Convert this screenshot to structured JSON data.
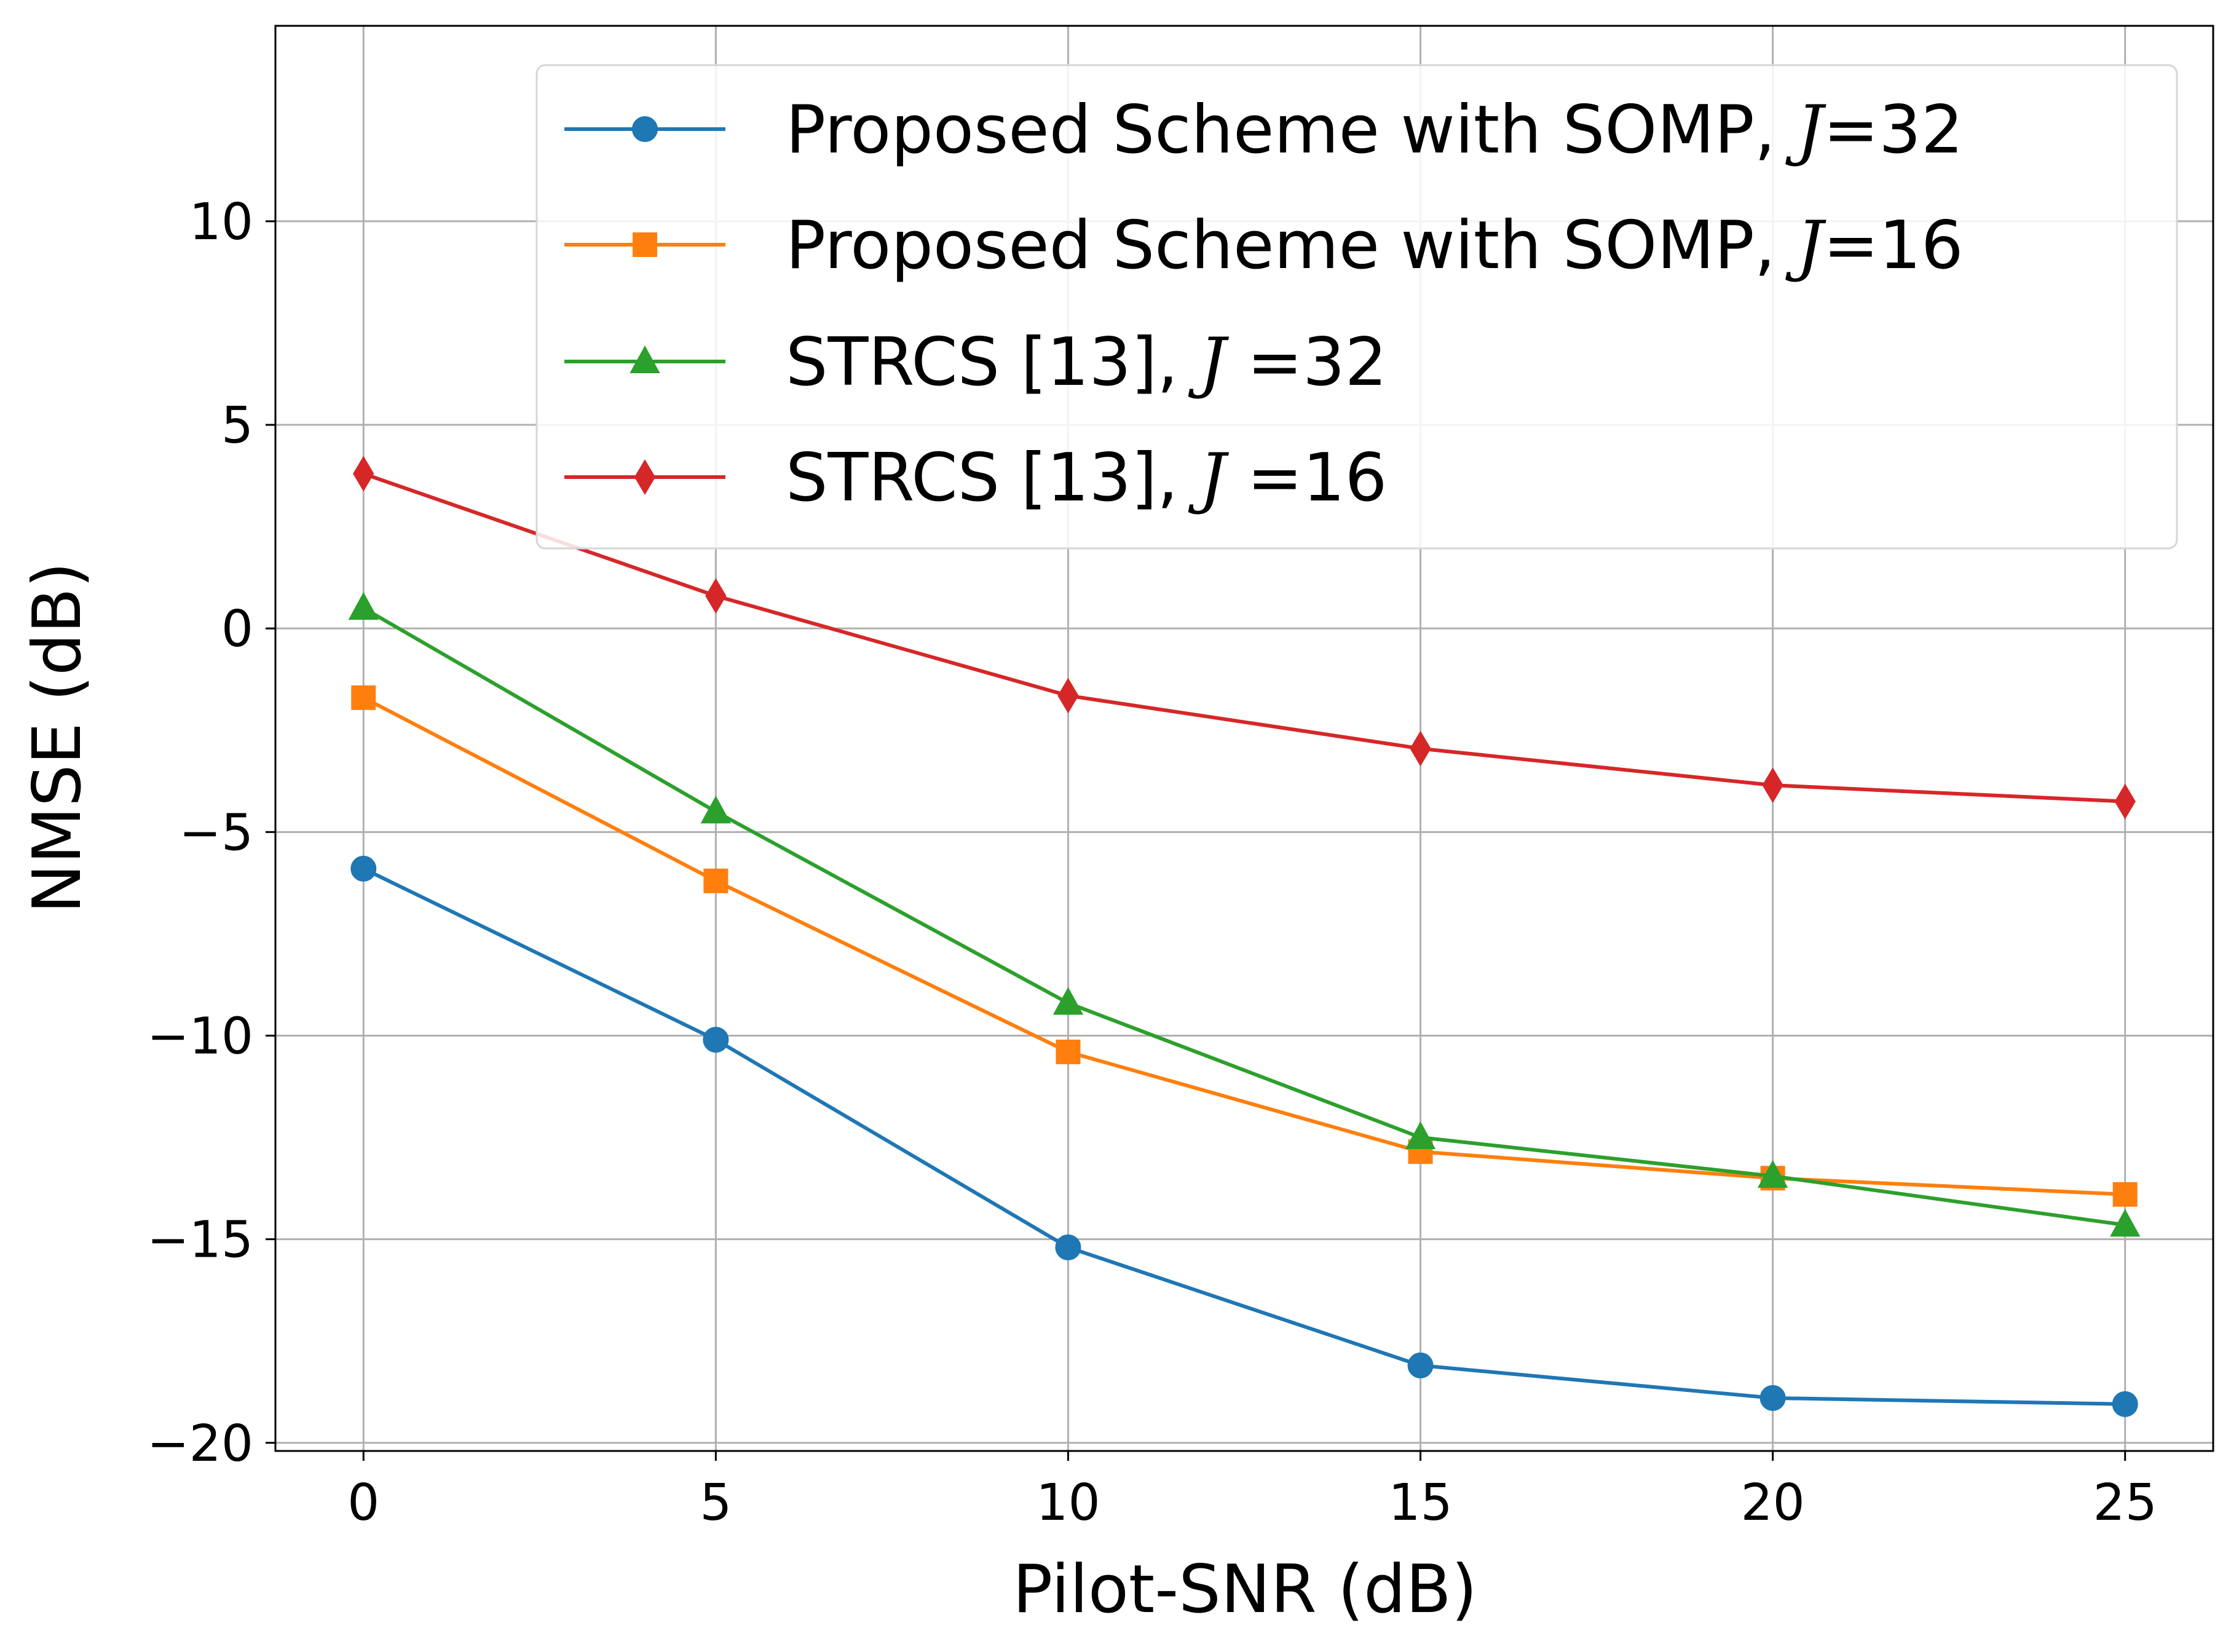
{
  "chart_data": {
    "type": "line",
    "title": "",
    "xlabel": "Pilot-SNR (dB)",
    "ylabel": "NMSE (dB)",
    "x": [
      0,
      5,
      10,
      15,
      20,
      25
    ],
    "xlim": [
      -1.25,
      26.25
    ],
    "ylim": [
      -20.2,
      14.8
    ],
    "xticks": [
      0,
      5,
      10,
      15,
      20,
      25
    ],
    "yticks": [
      -20,
      -15,
      -10,
      -5,
      0,
      5,
      10
    ],
    "xtick_labels": [
      "0",
      "5",
      "10",
      "15",
      "20",
      "25"
    ],
    "ytick_labels": [
      "−20",
      "−15",
      "−10",
      "−5",
      "0",
      "5",
      "10"
    ],
    "grid": true,
    "legend_position": "top-right",
    "series": [
      {
        "name": "Proposed Scheme with SOMP, J=32",
        "legend_prefix": "Proposed Scheme with SOMP, ",
        "legend_var": "J",
        "legend_suffix": "=32",
        "color": "#1f77b4",
        "marker": "circle",
        "values": [
          -5.9,
          -10.1,
          -15.2,
          -18.1,
          -18.9,
          -19.05
        ]
      },
      {
        "name": "Proposed Scheme with SOMP, J=16",
        "legend_prefix": "Proposed Scheme with SOMP, ",
        "legend_var": "J",
        "legend_suffix": "=16",
        "color": "#ff7f0e",
        "marker": "square",
        "values": [
          -1.7,
          -6.2,
          -10.4,
          -12.85,
          -13.5,
          -13.9
        ]
      },
      {
        "name": "STRCS [13], J =32",
        "legend_prefix": "STRCS [13], ",
        "legend_var": "J",
        "legend_suffix": " =32",
        "color": "#2ca02c",
        "marker": "triangle",
        "values": [
          0.5,
          -4.5,
          -9.2,
          -12.5,
          -13.45,
          -14.65
        ]
      },
      {
        "name": "STRCS [13], J =16",
        "legend_prefix": "STRCS [13], ",
        "legend_var": "J",
        "legend_suffix": " =16",
        "color": "#d62728",
        "marker": "diamond",
        "values": [
          3.8,
          0.8,
          -1.65,
          -2.95,
          -3.85,
          -4.25
        ]
      }
    ]
  }
}
